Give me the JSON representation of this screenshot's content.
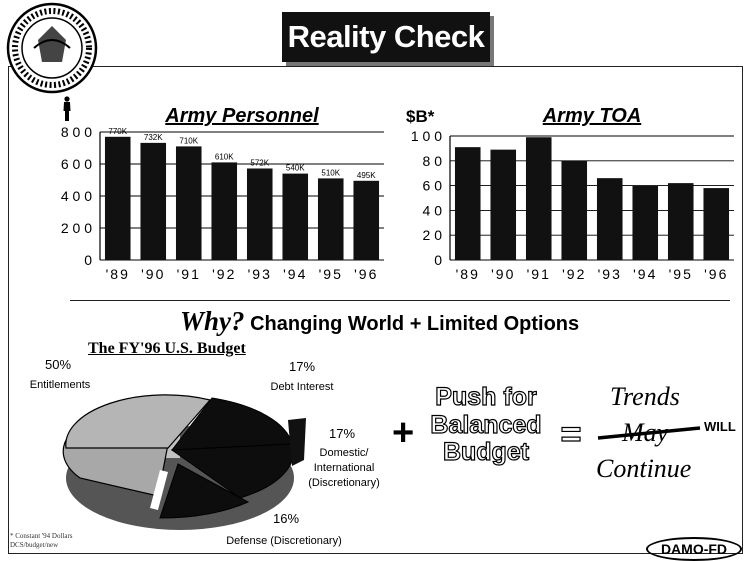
{
  "title": "Reality Check",
  "colors": {
    "bar": "#111111",
    "frame": "#222222",
    "title_box": "#111111",
    "pie_light": "#a8a8a8",
    "pie_dark": "#0d0d0d"
  },
  "chart_data": [
    {
      "type": "bar",
      "title": "Army Personnel",
      "categories": [
        "'89",
        "'90",
        "'91",
        "'92",
        "'93",
        "'94",
        "'95",
        "'96"
      ],
      "values": [
        770,
        732,
        710,
        610,
        572,
        540,
        510,
        495
      ],
      "data_labels": [
        "770K",
        "732K",
        "710K",
        "610K",
        "572K",
        "540K",
        "510K",
        "495K"
      ],
      "yticks": [
        0,
        200,
        400,
        600,
        800
      ],
      "ytick_labels": [
        "0",
        "2 0 0",
        "4 0 0",
        "6 0 0",
        "8 0 0"
      ],
      "ylim": [
        0,
        800
      ],
      "grid": true
    },
    {
      "type": "bar",
      "title": "Army TOA",
      "ylabel": "$B*",
      "categories": [
        "'89",
        "'90",
        "'91",
        "'92",
        "'93",
        "'94",
        "'95",
        "'96"
      ],
      "values": [
        91,
        89,
        99,
        80,
        66,
        60,
        62,
        58
      ],
      "yticks": [
        0,
        20,
        40,
        60,
        80,
        100
      ],
      "ytick_labels": [
        "0",
        "2 0",
        "4 0",
        "6 0",
        "8 0",
        "1 0 0"
      ],
      "ylim": [
        0,
        100
      ],
      "grid": true
    },
    {
      "type": "pie",
      "title": "The FY'96 U.S. Budget",
      "slices": [
        {
          "pct_label": "50%",
          "label": "Entitlements",
          "value": 50
        },
        {
          "pct_label": "17%",
          "label": "Debt Interest",
          "value": 17
        },
        {
          "pct_label": "17%",
          "label": "Domestic/ International (Discretionary)",
          "value": 17
        },
        {
          "pct_label": "16%",
          "label": "Defense (Discretionary)",
          "value": 16
        }
      ]
    }
  ],
  "why": {
    "word": "Why?",
    "rest": "Changing World + Limited Options"
  },
  "pie_labels": {
    "entitlements_pct": "50%",
    "entitlements": "Entitlements",
    "debt_pct": "17%",
    "debt": "Debt Interest",
    "domestic_pct": "17%",
    "domestic_1": "Domestic/",
    "domestic_2": "International",
    "domestic_3": "(Discretionary)",
    "defense_pct": "16%",
    "defense": "Defense (Discretionary)"
  },
  "equation": {
    "plus": "+",
    "push_1": "Push for",
    "push_2": "Balanced",
    "push_3": "Budget",
    "equals": "=",
    "trends": "Trends",
    "may": "May",
    "will": "WILL",
    "continue": "Continue"
  },
  "footnote_1": "* Constant '94 Dollars",
  "footnote_2": "DCS/budget/new",
  "damo": "DAMO-FD"
}
